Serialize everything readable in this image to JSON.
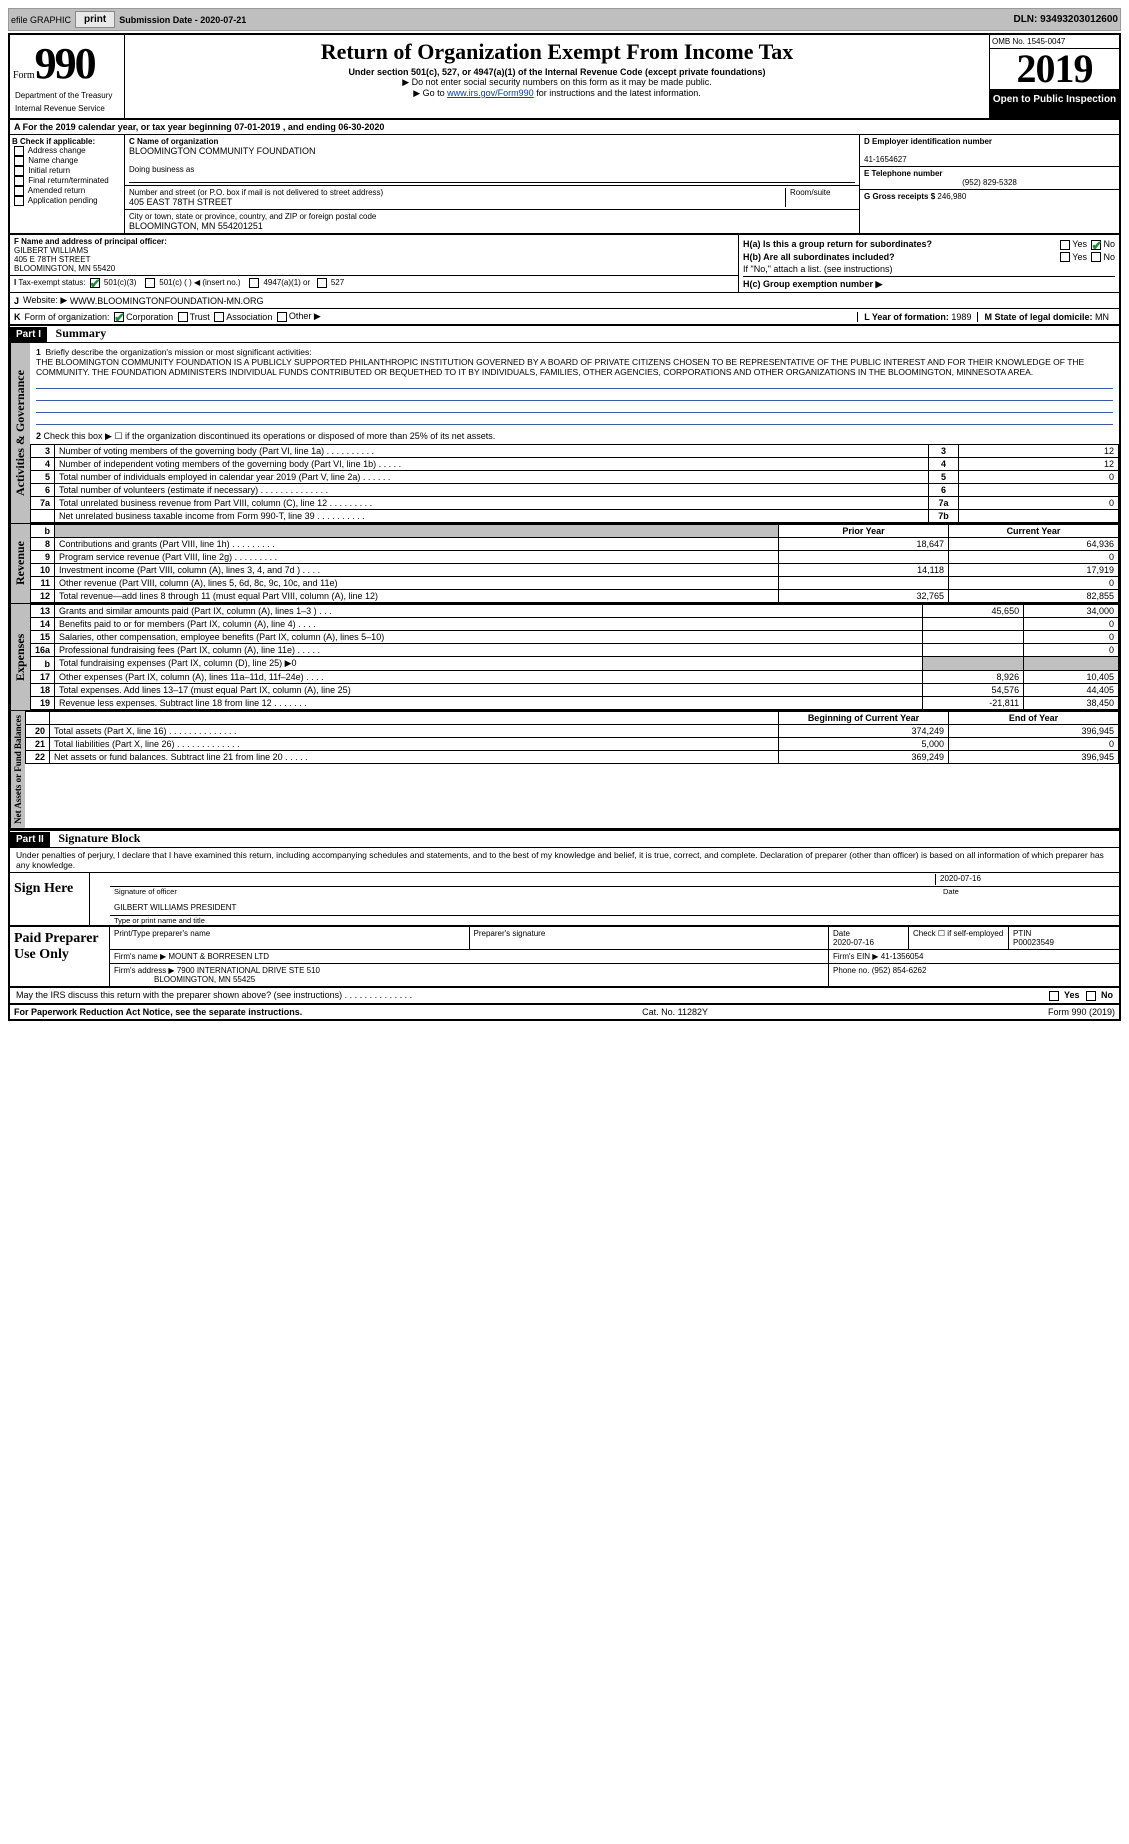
{
  "toolbar": {
    "efile_label": "efile GRAPHIC",
    "print_label": "print",
    "submission_label": "Submission Date - 2020-07-21",
    "dln": "DLN: 93493203012600"
  },
  "header": {
    "form_word": "Form",
    "form_number": "990",
    "title": "Return of Organization Exempt From Income Tax",
    "subtitle": "Under section 501(c), 527, or 4947(a)(1) of the Internal Revenue Code (except private foundations)",
    "note1": "▶ Do not enter social security numbers on this form as it may be made public.",
    "note2_prefix": "▶ Go to ",
    "note2_link": "www.irs.gov/Form990",
    "note2_suffix": " for instructions and the latest information.",
    "dept1": "Department of the Treasury",
    "dept2": "Internal Revenue Service",
    "omb": "OMB No. 1545-0047",
    "year": "2019",
    "inspect": "Open to Public Inspection"
  },
  "period": {
    "text_a": "A For the 2019 calendar year, or tax year beginning 07-01-2019",
    "text_b": ", and ending 06-30-2020"
  },
  "boxB": {
    "label": "B Check if applicable:",
    "items": [
      "Address change",
      "Name change",
      "Initial return",
      "Final return/terminated",
      "Amended return",
      "Application pending"
    ]
  },
  "boxC": {
    "name_label": "C Name of organization",
    "name": "BLOOMINGTON COMMUNITY FOUNDATION",
    "dba_label": "Doing business as",
    "addr_label": "Number and street (or P.O. box if mail is not delivered to street address)",
    "room_label": "Room/suite",
    "addr": "405 EAST 78TH STREET",
    "city_label": "City or town, state or province, country, and ZIP or foreign postal code",
    "city": "BLOOMINGTON, MN  554201251"
  },
  "boxD": {
    "label": "D Employer identification number",
    "val": "41-1654627"
  },
  "boxE": {
    "label": "E Telephone number",
    "val": "(952) 829-5328"
  },
  "boxG": {
    "label": "G Gross receipts $",
    "val": "246,980"
  },
  "boxF": {
    "label": "F  Name and address of principal officer:",
    "name": "GILBERT WILLIAMS",
    "addr1": "405 E 78TH STREET",
    "addr2": "BLOOMINGTON, MN  55420"
  },
  "boxH": {
    "ha": "H(a)  Is this a group return for subordinates?",
    "hb": "H(b)  Are all subordinates included?",
    "hb_note": "If \"No,\" attach a list. (see instructions)",
    "hc": "H(c)  Group exemption number ▶",
    "yes": "Yes",
    "no": "No"
  },
  "lineI": {
    "label": "I",
    "text": "Tax-exempt status:",
    "opts": [
      "501(c)(3)",
      "501(c) (   ) ◀ (insert no.)",
      "4947(a)(1) or",
      "527"
    ]
  },
  "lineJ": {
    "label": "J",
    "text": "Website: ▶",
    "val": "WWW.BLOOMINGTONFOUNDATION-MN.ORG"
  },
  "lineK": {
    "label": "K",
    "text": "Form of organization:",
    "opts": [
      "Corporation",
      "Trust",
      "Association",
      "Other ▶"
    ]
  },
  "lineL": {
    "label": "L Year of formation:",
    "val": "1989"
  },
  "lineM": {
    "label": "M State of legal domicile:",
    "val": "MN"
  },
  "part1_hdr": "Part I",
  "part1_title": "Summary",
  "mission": {
    "q1_label": "1",
    "q1": "Briefly describe the organization's mission or most significant activities:",
    "text": "THE BLOOMINGTON COMMUNITY FOUNDATION IS A PUBLICLY SUPPORTED PHILANTHROPIC INSTITUTION GOVERNED BY A BOARD OF PRIVATE CITIZENS CHOSEN TO BE REPRESENTATIVE OF THE PUBLIC INTEREST AND FOR THEIR KNOWLEDGE OF THE COMMUNITY. THE FOUNDATION ADMINISTERS INDIVIDUAL FUNDS CONTRIBUTED OR BEQUETHED TO IT BY INDIVIDUALS, FAMILIES, OTHER AGENCIES, CORPORATIONS AND OTHER ORGANIZATIONS IN THE BLOOMINGTON, MINNESOTA AREA."
  },
  "governance": {
    "q2": "Check this box ▶ ☐ if the organization discontinued its operations or disposed of more than 25% of its net assets.",
    "rows": [
      {
        "n": "3",
        "t": "Number of voting members of the governing body (Part VI, line 1a)  .   .   .   .   .   .   .   .   .   .",
        "box": "3",
        "v": "12"
      },
      {
        "n": "4",
        "t": "Number of independent voting members of the governing body (Part VI, line 1b)   .   .   .   .   .",
        "box": "4",
        "v": "12"
      },
      {
        "n": "5",
        "t": "Total number of individuals employed in calendar year 2019 (Part V, line 2a)  .   .   .   .   .   .",
        "box": "5",
        "v": "0"
      },
      {
        "n": "6",
        "t": "Total number of volunteers (estimate if necessary)   .   .   .   .   .   .   .   .   .   .   .   .   .   .",
        "box": "6",
        "v": ""
      },
      {
        "n": "7a",
        "t": "Total unrelated business revenue from Part VIII, column (C), line 12   .   .   .   .   .   .   .   .   .",
        "box": "7a",
        "v": "0"
      },
      {
        "n": "",
        "t": "Net unrelated business taxable income from Form 990-T, line 39   .   .   .   .   .   .   .   .   .   .",
        "box": "7b",
        "v": ""
      }
    ]
  },
  "revenue": {
    "hdr_b": "b",
    "hdr_prior": "Prior Year",
    "hdr_curr": "Current Year",
    "rows": [
      {
        "n": "8",
        "t": "Contributions and grants (Part VIII, line 1h)  .   .   .   .   .   .   .   .   .",
        "p": "18,647",
        "c": "64,936"
      },
      {
        "n": "9",
        "t": "Program service revenue (Part VIII, line 2g)  .   .   .   .   .   .   .   .   .",
        "p": "",
        "c": "0"
      },
      {
        "n": "10",
        "t": "Investment income (Part VIII, column (A), lines 3, 4, and 7d )  .   .   .   .",
        "p": "14,118",
        "c": "17,919"
      },
      {
        "n": "11",
        "t": "Other revenue (Part VIII, column (A), lines 5, 6d, 8c, 9c, 10c, and 11e)",
        "p": "",
        "c": "0"
      },
      {
        "n": "12",
        "t": "Total revenue—add lines 8 through 11 (must equal Part VIII, column (A), line 12)",
        "p": "32,765",
        "c": "82,855"
      }
    ]
  },
  "expenses": {
    "rows": [
      {
        "n": "13",
        "t": "Grants and similar amounts paid (Part IX, column (A), lines 1–3 )  .   .   .",
        "p": "45,650",
        "c": "34,000"
      },
      {
        "n": "14",
        "t": "Benefits paid to or for members (Part IX, column (A), line 4)  .   .   .   .",
        "p": "",
        "c": "0"
      },
      {
        "n": "15",
        "t": "Salaries, other compensation, employee benefits (Part IX, column (A), lines 5–10)",
        "p": "",
        "c": "0"
      },
      {
        "n": "16a",
        "t": "Professional fundraising fees (Part IX, column (A), line 11e)  .   .   .   .   .",
        "p": "",
        "c": "0"
      },
      {
        "n": "b",
        "t": "Total fundraising expenses (Part IX, column (D), line 25) ▶0",
        "p": "shade",
        "c": "shade"
      },
      {
        "n": "17",
        "t": "Other expenses (Part IX, column (A), lines 11a–11d, 11f–24e)  .   .   .   .",
        "p": "8,926",
        "c": "10,405"
      },
      {
        "n": "18",
        "t": "Total expenses. Add lines 13–17 (must equal Part IX, column (A), line 25)",
        "p": "54,576",
        "c": "44,405"
      },
      {
        "n": "19",
        "t": "Revenue less expenses. Subtract line 18 from line 12  .   .   .   .   .   .   .",
        "p": "-21,811",
        "c": "38,450"
      }
    ]
  },
  "netassets": {
    "hdr_begin": "Beginning of Current Year",
    "hdr_end": "End of Year",
    "rows": [
      {
        "n": "20",
        "t": "Total assets (Part X, line 16)  .   .   .   .   .   .   .   .   .   .   .   .   .   .",
        "p": "374,249",
        "c": "396,945"
      },
      {
        "n": "21",
        "t": "Total liabilities (Part X, line 26)  .   .   .   .   .   .   .   .   .   .   .   .   .",
        "p": "5,000",
        "c": "0"
      },
      {
        "n": "22",
        "t": "Net assets or fund balances. Subtract line 21 from line 20  .   .   .   .   .",
        "p": "369,249",
        "c": "396,945"
      }
    ]
  },
  "part2_hdr": "Part II",
  "part2_title": "Signature Block",
  "perjury": "Under penalties of perjury, I declare that I have examined this return, including accompanying schedules and statements, and to the best of my knowledge and belief, it is true, correct, and complete. Declaration of preparer (other than officer) is based on all information of which preparer has any knowledge.",
  "sign": {
    "left": "Sign Here",
    "date": "2020-07-16",
    "sig_lbl": "Signature of officer",
    "date_lbl": "Date",
    "name": "GILBERT WILLIAMS  PRESIDENT",
    "name_lbl": "Type or print name and title"
  },
  "paid": {
    "left": "Paid Preparer Use Only",
    "r1": {
      "a": "Print/Type preparer's name",
      "b": "Preparer's signature",
      "c": "Date",
      "cv": "2020-07-16",
      "d": "Check ☐ if self-employed",
      "e": "PTIN",
      "ev": "P00023549"
    },
    "r2": {
      "a": "Firm's name    ▶",
      "av": "MOUNT & BORRESEN LTD",
      "b": "Firm's EIN ▶",
      "bv": "41-1356054"
    },
    "r3": {
      "a": "Firm's address ▶",
      "av1": "7900 INTERNATIONAL DRIVE STE 510",
      "av2": "BLOOMINGTON, MN  55425",
      "b": "Phone no.",
      "bv": "(952) 854-6262"
    }
  },
  "discuss": "May the IRS discuss this return with the preparer shown above? (see instructions)   .   .   .   .   .   .   .   .   .   .   .   .   .   .",
  "foot": {
    "a": "For Paperwork Reduction Act Notice, see the separate instructions.",
    "b": "Cat. No. 11282Y",
    "c": "Form 990 (2019)"
  },
  "vtabs": {
    "gov": "Activities & Governance",
    "rev": "Revenue",
    "exp": "Expenses",
    "net": "Net Assets or Fund Balances"
  }
}
